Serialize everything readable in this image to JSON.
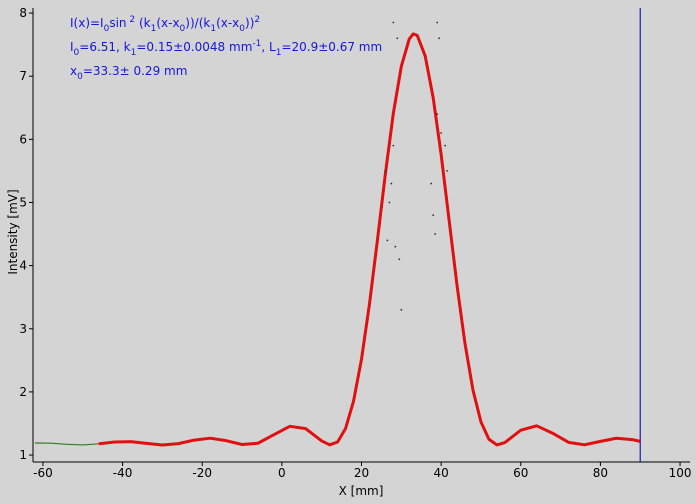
{
  "chart_data": {
    "type": "line",
    "x_label": "X [mm]",
    "y_label": "Intensity [mV]",
    "xlim": [
      -62.5,
      102.5
    ],
    "ylim": [
      0.89,
      8.08
    ],
    "xticks": [
      -60,
      -40,
      -20,
      0,
      20,
      40,
      60,
      80,
      100
    ],
    "yticks": [
      1,
      2,
      3,
      4,
      5,
      6,
      7,
      8
    ],
    "cursor_x": 90,
    "cursor_color": "#1a1ab4",
    "annotations": [
      [
        "I(x)=I",
        {
          "sub": "0"
        },
        "sin",
        {
          "sup": " 2"
        },
        " (k",
        {
          "sub": "1"
        },
        "(x-x",
        {
          "sub": "0"
        },
        "))/(k",
        {
          "sub": "1"
        },
        "(x-x",
        {
          "sub": "0"
        },
        "))",
        {
          "sup": "2"
        }
      ],
      [
        "I",
        {
          "sub": "0"
        },
        "=6.51,  k",
        {
          "sub": "1"
        },
        "=0.15±0.0048 mm",
        {
          "sup": "-1"
        },
        ",   L",
        {
          "sub": "1"
        },
        "=20.9±0.67 mm"
      ],
      [
        "x",
        {
          "sub": "0"
        },
        "=33.3±  0.29 mm"
      ]
    ],
    "x": [
      -62,
      -58,
      -54,
      -50,
      -46,
      -42,
      -38,
      -34,
      -30,
      -26,
      -22,
      -18,
      -14,
      -10,
      -6,
      -2,
      2,
      6,
      10,
      12,
      14,
      16,
      18,
      20,
      22,
      24,
      26,
      28,
      30,
      32,
      33,
      34,
      36,
      38,
      40,
      42,
      44,
      46,
      48,
      50,
      52,
      54,
      56,
      60,
      64,
      68,
      72,
      76,
      80,
      84,
      88,
      90
    ],
    "series": [
      {
        "color": "#2e7d1e",
        "width": 1.2,
        "values": [
          1.191,
          1.188,
          1.17,
          1.16,
          1.178,
          1.207,
          1.212,
          1.185,
          1.16,
          1.181,
          1.237,
          1.267,
          1.228,
          1.167,
          1.187,
          1.322,
          1.455,
          1.418,
          1.224,
          1.162,
          1.207,
          1.421,
          1.853,
          2.517,
          3.39,
          4.405,
          5.455,
          6.414,
          7.156,
          7.59,
          7.67,
          7.646,
          7.319,
          6.66,
          5.76,
          4.72,
          3.685,
          2.762,
          2.028,
          1.526,
          1.25,
          1.161,
          1.198,
          1.393,
          1.463,
          1.346,
          1.201,
          1.162,
          1.217,
          1.266,
          1.245,
          1.217
        ]
      },
      {
        "color": "#e01010",
        "width": 3,
        "values": [
          null,
          null,
          null,
          null,
          1.178,
          1.207,
          1.212,
          1.185,
          1.16,
          1.181,
          1.237,
          1.267,
          1.228,
          1.167,
          1.187,
          1.322,
          1.455,
          1.418,
          1.224,
          1.162,
          1.207,
          1.421,
          1.853,
          2.517,
          3.39,
          4.405,
          5.455,
          6.414,
          7.156,
          7.59,
          7.67,
          7.646,
          7.319,
          6.66,
          5.76,
          4.72,
          3.685,
          2.762,
          2.028,
          1.526,
          1.25,
          1.161,
          1.198,
          1.393,
          1.463,
          1.346,
          1.201,
          1.162,
          1.217,
          1.266,
          1.245,
          1.217
        ]
      }
    ],
    "points": {
      "color": "#333333",
      "x": [
        28,
        29,
        27.5,
        27,
        26.5,
        28.5,
        29.5,
        30,
        28,
        26,
        39,
        39.5,
        40,
        38,
        38.5,
        41,
        41.5,
        39,
        37.5
      ],
      "y": [
        7.85,
        7.6,
        5.3,
        5.0,
        4.4,
        4.3,
        4.1,
        3.3,
        5.9,
        5.5,
        7.85,
        7.6,
        6.1,
        4.8,
        4.5,
        5.9,
        5.5,
        6.4,
        5.3
      ]
    }
  }
}
